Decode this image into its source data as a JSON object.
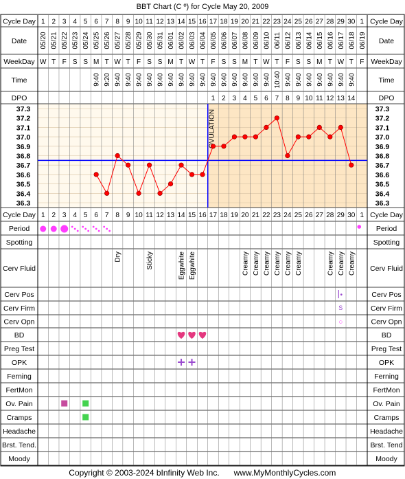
{
  "title": "BBT Chart (C º) for Cycle May 20, 2009",
  "footer": {
    "copyright": "Copyright © 2003-2024 bInfinity Web Inc.",
    "site": "www.MyMonthlyCycles.com"
  },
  "colors": {
    "accent_pink": "#ff3cff",
    "line_red": "#ff0000",
    "coverline_blue": "#0000ff",
    "post_ovulation_bg": "#fde6c4",
    "pre_ovulation_bg": "#fff9ed",
    "grid": "#d9c3a3",
    "ov_pain": "#c64b9e",
    "cramps": "#44d34f",
    "heart": "#e4387f",
    "opk_plus": "#9b4bd0",
    "cervix_pos": "#9b4bd0"
  },
  "row_labels": {
    "cycle_day": "Cycle Day",
    "date": "Date",
    "weekday": "WeekDay",
    "time": "Time",
    "dpo": "DPO",
    "period": "Period",
    "spotting": "Spotting",
    "cerv_fluid": "Cerv Fluid",
    "cerv_pos": "Cerv Pos",
    "cerv_firm": "Cerv Firm",
    "cerv_opn": "Cerv Opn",
    "bd": "BD",
    "preg_test": "Preg Test",
    "opk": "OPK",
    "ferning": "Ferning",
    "fertmon": "FertMon",
    "ov_pain": "Ov. Pain",
    "cramps": "Cramps",
    "headache": "Headache",
    "brst_tend_left": "Brst. Tend.",
    "brst_tend_right": "Brst. Tend",
    "moody": "Moody"
  },
  "cycle_days": [
    "1",
    "2",
    "3",
    "4",
    "5",
    "6",
    "7",
    "8",
    "9",
    "10",
    "11",
    "12",
    "13",
    "14",
    "15",
    "16",
    "17",
    "18",
    "19",
    "20",
    "21",
    "22",
    "23",
    "24",
    "25",
    "26",
    "27",
    "28",
    "29",
    "30",
    "1"
  ],
  "dates": [
    "05/20",
    "05/21",
    "05/22",
    "05/23",
    "05/24",
    "05/25",
    "05/26",
    "05/27",
    "05/28",
    "05/29",
    "05/30",
    "05/31",
    "06/01",
    "06/02",
    "06/03",
    "06/04",
    "06/05",
    "06/06",
    "06/07",
    "06/08",
    "06/09",
    "06/10",
    "06/11",
    "06/12",
    "06/13",
    "06/14",
    "06/15",
    "06/16",
    "06/17",
    "06/18",
    "06/19"
  ],
  "weekdays": [
    "W",
    "T",
    "F",
    "S",
    "S",
    "M",
    "T",
    "W",
    "T",
    "F",
    "S",
    "S",
    "M",
    "T",
    "W",
    "T",
    "F",
    "S",
    "S",
    "M",
    "T",
    "W",
    "T",
    "F",
    "S",
    "S",
    "M",
    "T",
    "W",
    "T",
    "F"
  ],
  "times": [
    "",
    "",
    "",
    "",
    "",
    "9:40",
    "9:20",
    "9:40",
    "9:40",
    "9:40",
    "9:40",
    "9:40",
    "9:40",
    "9:40",
    "9:40",
    "9:40",
    "9:40",
    "9:40",
    "9:40",
    "9:40",
    "9:40",
    "9:40",
    "10:40",
    "9:40",
    "9:40",
    "9:40",
    "9:40",
    "9:40",
    "9:40",
    "9:40",
    ""
  ],
  "dpo": [
    "",
    "",
    "",
    "",
    "",
    "",
    "",
    "",
    "",
    "",
    "",
    "",
    "",
    "",
    "",
    "",
    "1",
    "2",
    "3",
    "4",
    "5",
    "6",
    "7",
    "8",
    "9",
    "10",
    "11",
    "12",
    "13",
    "14",
    ""
  ],
  "ovulation_label": "OVULATION",
  "chart_data": {
    "type": "line",
    "title": "BBT Chart (C º) for Cycle May 20, 2009",
    "x": [
      1,
      2,
      3,
      4,
      5,
      6,
      7,
      8,
      9,
      10,
      11,
      12,
      13,
      14,
      15,
      16,
      17,
      18,
      19,
      20,
      21,
      22,
      23,
      24,
      25,
      26,
      27,
      28,
      29,
      30,
      31
    ],
    "series": [
      {
        "values": [
          null,
          null,
          null,
          null,
          null,
          36.6,
          36.4,
          36.8,
          36.7,
          36.4,
          36.7,
          36.4,
          36.5,
          36.7,
          36.6,
          36.6,
          36.9,
          36.9,
          37.0,
          37.0,
          37.0,
          37.1,
          37.2,
          36.8,
          37.0,
          37.0,
          37.1,
          37.0,
          37.1,
          36.7,
          null
        ]
      }
    ],
    "y_ticks": [
      "37.3",
      "37.2",
      "37.1",
      "37.0",
      "36.9",
      "36.8",
      "36.7",
      "36.6",
      "36.5",
      "36.4",
      "36.3"
    ],
    "ylim": [
      36.3,
      37.3
    ],
    "coverline": 36.75,
    "ovulation_day": 16,
    "grid": true
  },
  "period": {
    "heavy_days": [
      1,
      2
    ],
    "very_heavy_days": [
      3
    ],
    "light_days": [
      4,
      5,
      6,
      7
    ],
    "spot_days": [
      31
    ]
  },
  "cerv_fluid": {
    "8": "Dry",
    "11": "Sticky",
    "14": "Eggwhite",
    "15": "Eggwhite",
    "20": "Creamy",
    "21": "Creamy",
    "22": "Creamy",
    "23": "Creamy",
    "24": "Creamy",
    "25": "Creamy",
    "28": "Creamy",
    "29": "Creamy",
    "30": "Creamy"
  },
  "cerv_pos": {
    "day": 29,
    "symbol": "•"
  },
  "cerv_firm": {
    "day": 29,
    "symbol": "S"
  },
  "cerv_opn": {
    "day": 29,
    "symbol": "○"
  },
  "bd_days": [
    14,
    15,
    16
  ],
  "opk_positive_days": [
    14,
    15
  ],
  "ov_pain_days": [
    3,
    5
  ],
  "cramps_days": [
    5
  ]
}
